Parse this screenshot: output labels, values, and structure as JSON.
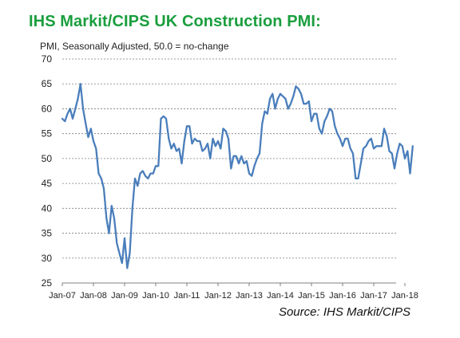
{
  "title": "IHS Markit/CIPS UK Construction PMI:",
  "subtitle": "PMI, Seasonally Adjusted, 50.0 = no-change",
  "source": "Source: IHS Markit/CIPS",
  "colors": {
    "title": "#1a9e3e",
    "series": "#4a7ebb",
    "grid": "#7f7f7f"
  },
  "chart_data": {
    "type": "line",
    "title": "IHS Markit/CIPS UK Construction PMI:",
    "ylabel": "PMI, Seasonally Adjusted, 50.0 = no-change",
    "ylim": [
      25,
      70
    ],
    "yticks": [
      25,
      30,
      35,
      40,
      45,
      50,
      55,
      60,
      65,
      70
    ],
    "xticks": [
      "Jan-07",
      "Jan-08",
      "Jan-09",
      "Jan-10",
      "Jan-11",
      "Jan-12",
      "Jan-13",
      "Jan-14",
      "Jan-15",
      "Jan-16",
      "Jan-17",
      "Jan-18"
    ],
    "grid": "horizontal dashed",
    "x_start": "Jan-07",
    "x_frequency": "monthly",
    "values": [
      58.0,
      57.5,
      59.0,
      60.0,
      58.0,
      60.0,
      62.0,
      65.0,
      60.0,
      57.0,
      54.3,
      56.0,
      53.5,
      52.0,
      47.0,
      46.0,
      44.0,
      38.0,
      35.0,
      40.5,
      38.0,
      33.0,
      31.0,
      29.0,
      34.0,
      28.0,
      31.0,
      40.0,
      46.0,
      44.5,
      47.0,
      47.5,
      46.5,
      46.0,
      47.0,
      47.0,
      48.5,
      48.5,
      58.0,
      58.5,
      58.0,
      54.0,
      52.0,
      53.0,
      51.5,
      52.0,
      49.0,
      53.5,
      56.5,
      56.5,
      53.0,
      54.0,
      53.5,
      53.5,
      51.5,
      52.0,
      53.0,
      50.0,
      54.0,
      52.5,
      53.5,
      52.0,
      56.0,
      55.5,
      54.0,
      48.0,
      50.5,
      50.5,
      49.0,
      50.5,
      49.0,
      49.5,
      47.0,
      46.5,
      48.5,
      50.0,
      51.0,
      57.0,
      59.5,
      59.0,
      62.0,
      63.0,
      60.0,
      62.0,
      63.0,
      62.5,
      62.0,
      60.0,
      61.0,
      62.5,
      64.5,
      64.0,
      63.0,
      61.0,
      61.0,
      61.5,
      57.5,
      59.0,
      59.0,
      56.0,
      55.0,
      57.5,
      58.5,
      60.0,
      59.5,
      56.5,
      55.0,
      54.0,
      52.5,
      54.0,
      54.0,
      52.0,
      51.0,
      46.0,
      46.0,
      49.0,
      52.0,
      52.5,
      53.5,
      54.0,
      52.0,
      52.5,
      52.5,
      52.5,
      56.0,
      54.5,
      51.5,
      51.0,
      48.0,
      51.0,
      53.0,
      52.5,
      50.0,
      51.5,
      47.0,
      52.5
    ]
  }
}
